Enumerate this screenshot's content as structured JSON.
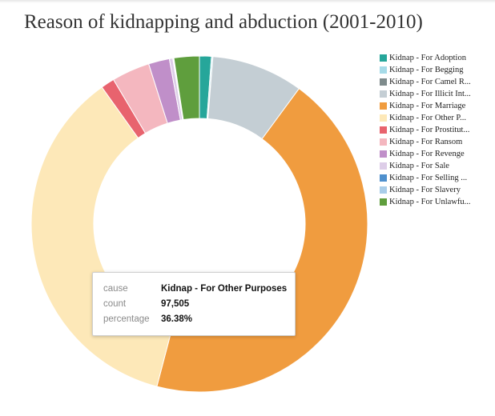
{
  "chart_data": {
    "type": "pie",
    "title": "Reason of kidnapping and abduction (2001-2010)",
    "legend_position": "right",
    "categories": [
      "Kidnap - For Adoption",
      "Kidnap - For Begging",
      "Kidnap - For Camel R...",
      "Kidnap - For Illicit Int...",
      "Kidnap - For Marriage",
      "Kidnap - For Other P...",
      "Kidnap - For Prostitut...",
      "Kidnap - For Ransom",
      "Kidnap - For Revenge",
      "Kidnap - For Sale",
      "Kidnap - For Selling ...",
      "Kidnap - For Slavery",
      "Kidnap - For Unlawfu..."
    ],
    "values": [
      1.15,
      0.12,
      0.02,
      8.88,
      44.36,
      36.38,
      1.32,
      3.69,
      2.03,
      0.33,
      0.03,
      0.08,
      2.45
    ],
    "colors": [
      "#26a69a",
      "#a6dbe8",
      "#7e8b8c",
      "#c4ced4",
      "#f09c3f",
      "#fde8b8",
      "#e8636e",
      "#f4b7bf",
      "#c08fc9",
      "#ddcde8",
      "#4f90cd",
      "#a9cde9",
      "#5f9e3d"
    ]
  },
  "tooltip": {
    "cause_label": "cause",
    "cause_value": "Kidnap - For Other Purposes",
    "count_label": "count",
    "count_value": "97,505",
    "percentage_label": "percentage",
    "percentage_value": "36.38%"
  }
}
